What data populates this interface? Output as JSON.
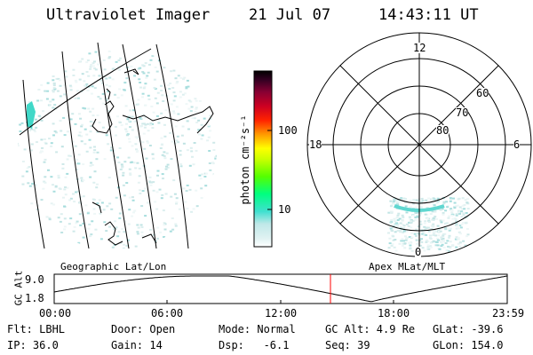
{
  "header": {
    "title": "Ultraviolet Imager",
    "date": "21 Jul 07",
    "time": "14:43:11 UT"
  },
  "colorbar": {
    "label": "photon cm⁻²s⁻¹",
    "ticks": [
      "100",
      "10"
    ]
  },
  "polar": {
    "mlt_labels": [
      "12",
      "18",
      "6",
      "0"
    ],
    "lat_labels": [
      "60",
      "70",
      "80"
    ]
  },
  "map_labels": {
    "left": "Geographic Lat/Lon",
    "right": "Apex MLat/MLT"
  },
  "altitude_plot": {
    "ylabel": "GC Alt",
    "yticks": [
      "9.0",
      "1.8"
    ],
    "xticks": [
      "00:00",
      "06:00",
      "12:00",
      "18:00",
      "23:59"
    ],
    "current_marker_color": "#ff0000"
  },
  "info": {
    "flt": "Flt: LBHL",
    "ip": "IP: 36.0",
    "door": "Door: Open",
    "gain": "Gain: 14",
    "mode": "Mode: Normal",
    "dsp": "Dsp:   -6.1",
    "gcalt": "GC Alt: 4.9 Re",
    "seq": "Seq: 39",
    "glat": "GLat: -39.6",
    "glon": "GLon: 154.0"
  }
}
